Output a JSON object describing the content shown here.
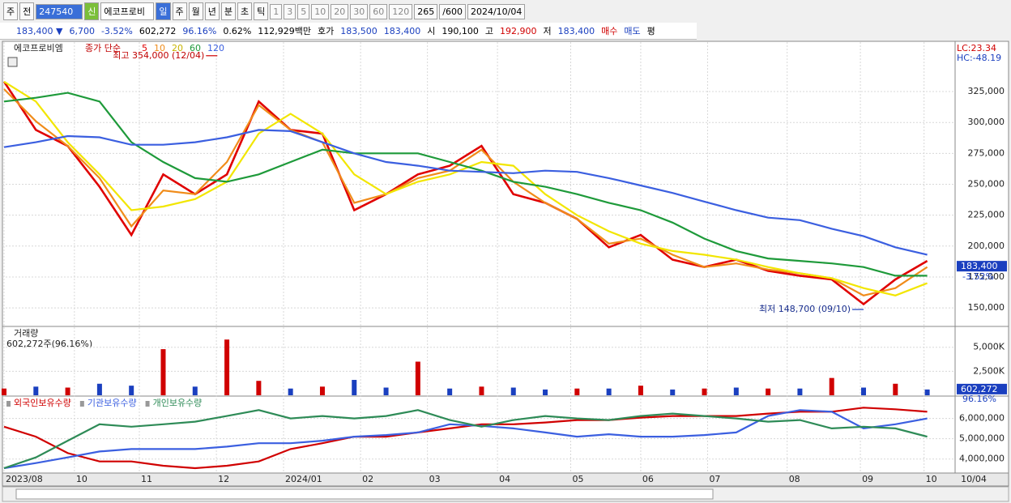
{
  "toolbar": {
    "items": [
      "주",
      "전",
      "247540",
      "신",
      "에코프로비",
      "일",
      "주",
      "월",
      "년",
      "분",
      "초",
      "틱",
      "1",
      "3",
      "5",
      "10",
      "20",
      "30",
      "60",
      "120",
      "265",
      "/600",
      "2024/10/04"
    ]
  },
  "quote_bar": [
    {
      "text": "183,400 ▼",
      "color": "#1a3fbf"
    },
    {
      "text": "6,700",
      "color": "#1a3fbf"
    },
    {
      "text": "-3.52%",
      "color": "#1a3fbf"
    },
    {
      "text": "602,272",
      "color": "#000000"
    },
    {
      "text": "96.16%",
      "color": "#1a3fbf"
    },
    {
      "text": "0.62%",
      "color": "#000000"
    },
    {
      "text": "112,929백만",
      "color": "#000000"
    },
    {
      "text": "호가",
      "color": "#000000"
    },
    {
      "text": "183,500",
      "color": "#1a3fbf"
    },
    {
      "text": "183,400",
      "color": "#1a3fbf"
    },
    {
      "text": "시",
      "color": "#000000"
    },
    {
      "text": "190,100",
      "color": "#000000"
    },
    {
      "text": "고",
      "color": "#000000"
    },
    {
      "text": "192,900",
      "color": "#d00000"
    },
    {
      "text": "저",
      "color": "#000000"
    },
    {
      "text": "183,400",
      "color": "#1a3fbf"
    },
    {
      "text": "매수",
      "color": "#d00000"
    },
    {
      "text": "매도",
      "color": "#1a3fbf"
    },
    {
      "text": "평",
      "color": "#000000"
    }
  ],
  "chart_data": [
    {
      "type": "line",
      "title": "에코프로비엠",
      "legend_prefix": "종가 단순",
      "x": [
        0,
        1,
        2,
        3,
        4,
        5,
        6,
        7,
        8,
        9,
        10,
        11,
        12,
        13,
        14,
        15,
        16,
        17,
        18,
        19,
        20,
        21,
        22,
        23,
        24,
        25,
        26,
        27,
        28,
        29
      ],
      "xlim": [
        0,
        29.85
      ],
      "ylim": [
        135000,
        365000
      ],
      "yticks": [
        {
          "value": 150000,
          "label": "150,000"
        },
        {
          "value": 175000,
          "label": "175,000"
        },
        {
          "value": 200000,
          "label": "200,000"
        },
        {
          "value": 225000,
          "label": "225,000"
        },
        {
          "value": 250000,
          "label": "250,000"
        },
        {
          "value": 275000,
          "label": "275,000"
        },
        {
          "value": 300000,
          "label": "300,000"
        },
        {
          "value": 325000,
          "label": "325,000"
        }
      ],
      "grid": true,
      "series": [
        {
          "name": "5",
          "color": "#e00000",
          "values": [
            333000,
            294000,
            281000,
            248000,
            209000,
            258000,
            242000,
            258000,
            317000,
            294000,
            291000,
            229000,
            242000,
            258000,
            265000,
            281000,
            242000,
            235000,
            222000,
            199000,
            209000,
            189000,
            183000,
            189000,
            180000,
            176000,
            173000,
            153000,
            173000,
            188000
          ]
        },
        {
          "name": "10",
          "color": "#f08c1a",
          "values": [
            327000,
            301000,
            281000,
            255000,
            216000,
            245000,
            242000,
            268000,
            314000,
            294000,
            284000,
            235000,
            242000,
            255000,
            261000,
            278000,
            252000,
            235000,
            222000,
            202000,
            206000,
            193000,
            183000,
            186000,
            181000,
            178000,
            174000,
            160000,
            166000,
            183000
          ]
        },
        {
          "name": "20",
          "color": "#f2e600",
          "values": [
            333000,
            317000,
            284000,
            258000,
            229000,
            232000,
            238000,
            252000,
            291000,
            307000,
            291000,
            258000,
            242000,
            252000,
            258000,
            268000,
            265000,
            242000,
            225000,
            212000,
            202000,
            196000,
            193000,
            189000,
            183000,
            178000,
            174000,
            166000,
            160000,
            170000
          ]
        },
        {
          "name": "60",
          "color": "#1e9a3a",
          "values": [
            317000,
            320000,
            324000,
            317000,
            284000,
            268000,
            255000,
            252000,
            258000,
            268000,
            278000,
            275000,
            275000,
            275000,
            268000,
            261000,
            252000,
            248000,
            242000,
            235000,
            229000,
            219000,
            206000,
            196000,
            190000,
            188000,
            186000,
            183000,
            176000,
            176000
          ]
        },
        {
          "name": "120",
          "color": "#3b5fe0",
          "values": [
            280000,
            284000,
            289000,
            288000,
            282000,
            282000,
            284000,
            288000,
            294000,
            293000,
            284000,
            275000,
            268000,
            265000,
            261000,
            260000,
            259000,
            261000,
            260000,
            255000,
            249000,
            243000,
            236000,
            229000,
            223000,
            221000,
            214000,
            208000,
            199000,
            193000
          ]
        }
      ],
      "annotations": [
        {
          "text": "최고 354,000 (12/04)",
          "x": 6.7,
          "y": 354000
        },
        {
          "text": "최저 148,700 (09/10)",
          "x": 27.0,
          "y": 148700
        }
      ],
      "last_label": {
        "value": 183400,
        "label": "183,400"
      },
      "last_change": "-3.52%",
      "lc_label": "LC:23.34",
      "hc_label": "HC:-48.19"
    },
    {
      "type": "bar",
      "title": "거래량",
      "subtitle": "602,272주(96.16%)",
      "values": [
        700000,
        900000,
        800000,
        1200000,
        1000000,
        4800000,
        900000,
        5800000,
        1500000,
        700000,
        900000,
        1600000,
        800000,
        3500000,
        700000,
        900000,
        800000,
        600000,
        700000,
        700000,
        1000000,
        600000,
        700000,
        800000,
        700000,
        700000,
        1800000,
        800000,
        1200000,
        602272
      ],
      "bar_colors": [
        "#d00000",
        "#1a3fbf",
        "#d00000",
        "#1a3fbf",
        "#1a3fbf",
        "#d00000",
        "#1a3fbf",
        "#d00000",
        "#d00000",
        "#1a3fbf",
        "#d00000",
        "#1a3fbf",
        "#1a3fbf",
        "#d00000",
        "#1a3fbf",
        "#d00000",
        "#1a3fbf",
        "#1a3fbf",
        "#d00000",
        "#1a3fbf",
        "#d00000",
        "#1a3fbf",
        "#d00000",
        "#1a3fbf",
        "#d00000",
        "#1a3fbf",
        "#d00000",
        "#1a3fbf",
        "#d00000",
        "#1a3fbf"
      ],
      "ylim": [
        0,
        7083333
      ],
      "yticks": [
        {
          "value": 2500000,
          "label": "2,500K"
        },
        {
          "value": 5000000,
          "label": "5,000K"
        }
      ],
      "grid": true,
      "last_label": {
        "value": 602272,
        "label": "602,272"
      },
      "last_change": "96.16%"
    },
    {
      "type": "line",
      "ylim": [
        3350000,
        7060000
      ],
      "yticks": [
        {
          "value": 4000000,
          "label": "4,000,000"
        },
        {
          "value": 5000000,
          "label": "5,000,000"
        },
        {
          "value": 6000000,
          "label": "6,000,000"
        }
      ],
      "grid": true,
      "series": [
        {
          "name": "외국인보유수량",
          "color": "#d00000",
          "values": [
            5590000,
            5100000,
            4290000,
            3880000,
            3880000,
            3670000,
            3550000,
            3670000,
            3880000,
            4490000,
            4780000,
            5100000,
            5100000,
            5310000,
            5510000,
            5710000,
            5710000,
            5800000,
            5920000,
            5920000,
            6040000,
            6120000,
            6120000,
            6120000,
            6240000,
            6330000,
            6330000,
            6530000,
            6450000,
            6330000
          ]
        },
        {
          "name": "기관보유수량",
          "color": "#3b5fe0",
          "values": [
            3550000,
            3800000,
            4080000,
            4370000,
            4490000,
            4490000,
            4490000,
            4610000,
            4780000,
            4780000,
            4900000,
            5100000,
            5180000,
            5310000,
            5710000,
            5630000,
            5510000,
            5310000,
            5100000,
            5220000,
            5100000,
            5100000,
            5180000,
            5310000,
            6120000,
            6410000,
            6330000,
            5510000,
            5710000,
            6000000
          ]
        },
        {
          "name": "개인보유수량",
          "color": "#2e8b57",
          "values": [
            3550000,
            4080000,
            4900000,
            5710000,
            5590000,
            5710000,
            5840000,
            6120000,
            6410000,
            6000000,
            6120000,
            6000000,
            6120000,
            6410000,
            5920000,
            5590000,
            5920000,
            6120000,
            6000000,
            5920000,
            6120000,
            6240000,
            6120000,
            6000000,
            5840000,
            5920000,
            5510000,
            5590000,
            5510000,
            5100000
          ]
        }
      ],
      "xticks": [
        {
          "value": 0,
          "label": "2023/08"
        },
        {
          "value": 2.21,
          "label": "10"
        },
        {
          "value": 4.25,
          "label": "11"
        },
        {
          "value": 6.67,
          "label": "12"
        },
        {
          "value": 8.78,
          "label": "2024/01"
        },
        {
          "value": 11.2,
          "label": "02"
        },
        {
          "value": 13.3,
          "label": "03"
        },
        {
          "value": 15.5,
          "label": "04"
        },
        {
          "value": 17.8,
          "label": "05"
        },
        {
          "value": 20.0,
          "label": "06"
        },
        {
          "value": 22.1,
          "label": "07"
        },
        {
          "value": 24.6,
          "label": "08"
        },
        {
          "value": 26.9,
          "label": "09"
        },
        {
          "value": 28.9,
          "label": "10"
        }
      ],
      "x_end_label": "10/04"
    }
  ]
}
